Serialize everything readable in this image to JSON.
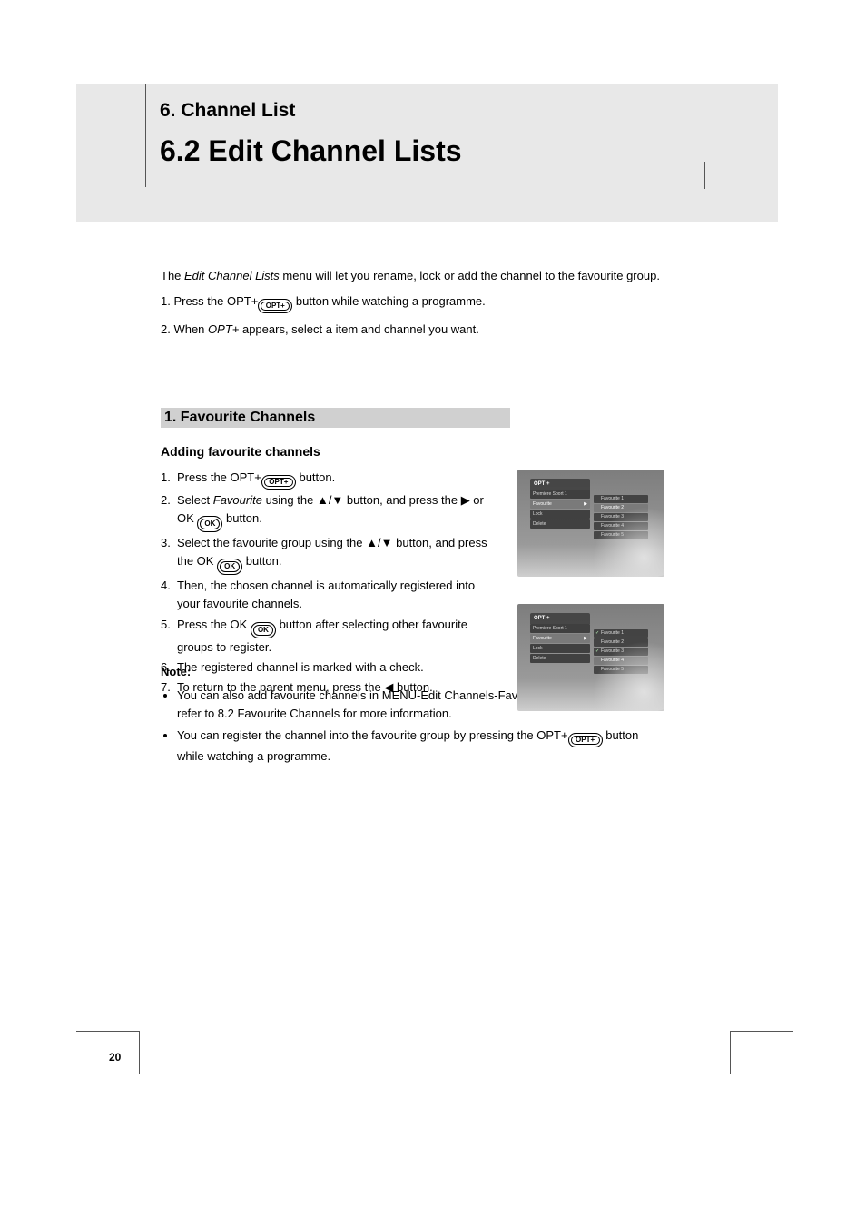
{
  "page_number": "20",
  "banner": {
    "chapter": "6. Channel List",
    "title": "6.2 Edit Channel Lists"
  },
  "intro": {
    "p1_pre": "The ",
    "p1_em": "Edit Channel Lists",
    "p1_post": " menu will let you rename, lock or add the channel to the favourite group.",
    "p2_pre": "1. Press the OPT+",
    "p2_post": "button while watching a programme.",
    "p3_pre": "2. When ",
    "p3_em": "OPT+",
    "p3_post": " appears, select a item and channel you want."
  },
  "section_heading": "1. Favourite Channels",
  "subheading": "Adding favourite channels",
  "steps": {
    "s1_a": "Press the OPT+",
    "s1_b": "button.",
    "s2_a": "Select ",
    "s2_em": "Favourite",
    "s2_b": " using the ",
    "s2_c": " button, and press the ",
    "s2_d": " or OK",
    "s2_e": "button.",
    "s3_a": "Select the favourite group using the ",
    "s3_b": " button, and press the OK",
    "s3_c": "button.",
    "s4_a": "Then, the chosen channel is automatically registered into your favourite channels.",
    "s5_a": "Press the OK",
    "s5_b": "button after selecting other favourite groups to register.",
    "s6_a": "The registered channel is marked with a check.",
    "s7_a": "To return to the parent menu, press the ",
    "s7_b": " button."
  },
  "note": {
    "label": "Note:",
    "n1": "You can also add favourite channels in MENU-Edit Channels-Favourite Channels. Please refer to 8.2 Favourite Channels for more information.",
    "n2_a": "You can register the channel into the favourite group by pressing the OPT+",
    "n2_b": "button while watching a programme."
  },
  "glyphs": {
    "up_down": "▲/▼",
    "right": "▶",
    "left": "◀",
    "opt_label": "OPT+",
    "ok_label": "OK"
  },
  "tv": {
    "title": "OPT +",
    "left_items": [
      "Premiere Sport 1",
      "Favourite",
      "Lock",
      "Delete"
    ],
    "right_items": [
      "Favourite 1",
      "Favourite 2",
      "Favourite 3",
      "Favourite 4",
      "Favourite 5"
    ],
    "shot1_left_sel": 1,
    "shot1_right_sel": 1,
    "shot1_right_checked": [],
    "shot2_left_sel": 1,
    "shot2_right_sel": 3,
    "shot2_right_checked": [
      0,
      2
    ]
  },
  "colors": {
    "page_bg": "#ffffff",
    "banner_bg": "#e8e8e8",
    "section_bar_bg": "#d0d0d0",
    "rule": "#555555",
    "text": "#000000"
  },
  "fonts": {
    "body_pt": 13,
    "chapter_pt": 21,
    "title_pt": 32,
    "section_pt": 16
  }
}
